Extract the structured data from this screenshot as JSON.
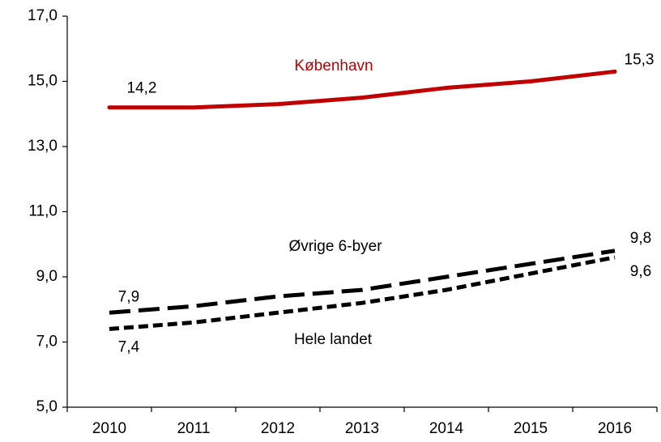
{
  "chart_data": {
    "type": "line",
    "categories": [
      "2010",
      "2011",
      "2012",
      "2013",
      "2014",
      "2015",
      "2016"
    ],
    "ylim": [
      5,
      17
    ],
    "yticks": [
      {
        "value": 5,
        "label": "5,0"
      },
      {
        "value": 7,
        "label": "7,0"
      },
      {
        "value": 9,
        "label": "9,0"
      },
      {
        "value": 11,
        "label": "11,0"
      },
      {
        "value": 13,
        "label": "13,0"
      },
      {
        "value": 15,
        "label": "15,0"
      },
      {
        "value": 17,
        "label": "17,0"
      }
    ],
    "grid": false,
    "series": [
      {
        "name": "København",
        "color": "#c00000",
        "values": [
          14.2,
          14.2,
          14.3,
          14.5,
          14.8,
          15.0,
          15.3
        ],
        "value_labels": [
          "14,2",
          null,
          null,
          null,
          null,
          null,
          "15,3"
        ]
      },
      {
        "name": "Øvrige 6-byer",
        "color": "#000000",
        "values": [
          7.9,
          8.1,
          8.4,
          8.6,
          9.0,
          9.4,
          9.8
        ],
        "value_labels": [
          "7,9",
          null,
          null,
          null,
          null,
          null,
          "9,8"
        ]
      },
      {
        "name": "Hele landet",
        "color": "#000000",
        "values": [
          7.4,
          7.6,
          7.9,
          8.2,
          8.6,
          9.1,
          9.6
        ],
        "value_labels": [
          "7,4",
          null,
          null,
          null,
          null,
          null,
          "9,6"
        ]
      }
    ]
  }
}
